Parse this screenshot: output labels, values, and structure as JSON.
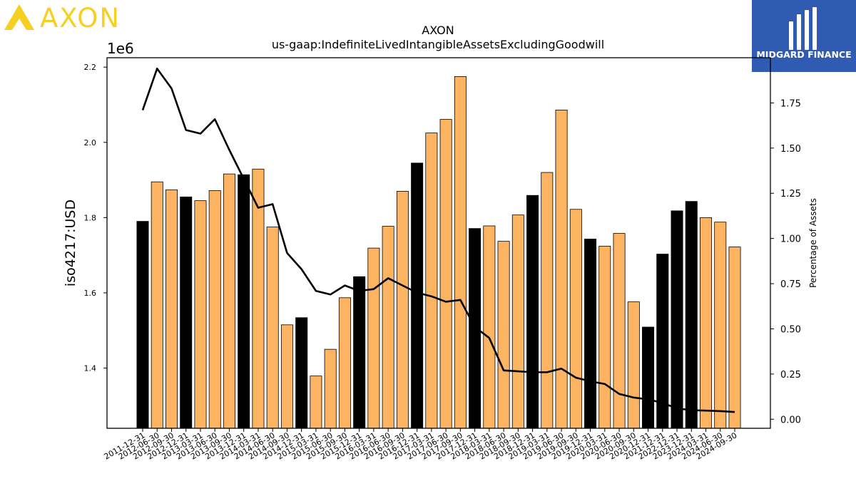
{
  "brand": {
    "company_logo_text": "AXON",
    "watermark_text": "MIDGARD FINANCE",
    "logo_color": "#f5d020",
    "watermark_bg": "#2f5bb3"
  },
  "chart_data": {
    "type": "bar",
    "title": "AXON",
    "subtitle": "us-gaap:IndefiniteLivedIntangibleAssetsExcludingGoodwill",
    "ylabel": "iso4217:USD",
    "y_offset_label": "1e6",
    "ylabel_right": "Percentage of Assets",
    "ylim": [
      1240000,
      2225000
    ],
    "y2lim": [
      -0.05,
      2.0
    ],
    "yticks": [
      1400000,
      1600000,
      1800000,
      2000000,
      2200000
    ],
    "yticks_labels": [
      "1.4",
      "1.6",
      "1.8",
      "2.0",
      "2.2"
    ],
    "y2ticks": [
      0.0,
      0.25,
      0.5,
      0.75,
      1.0,
      1.25,
      1.5,
      1.75
    ],
    "y2ticks_labels": [
      "0.00",
      "0.25",
      "0.50",
      "0.75",
      "1.00",
      "1.25",
      "1.50",
      "1.75"
    ],
    "grid": false,
    "categories": [
      "2011-12-31",
      "2012-06-30",
      "2012-09-30",
      "2012-12-31",
      "2013-03-31",
      "2013-06-30",
      "2013-09-30",
      "2013-12-31",
      "2014-03-31",
      "2014-06-30",
      "2014-09-30",
      "2014-12-31",
      "2015-03-31",
      "2015-06-30",
      "2015-09-30",
      "2015-12-31",
      "2016-03-31",
      "2016-06-30",
      "2016-09-30",
      "2016-12-31",
      "2017-03-31",
      "2017-06-30",
      "2017-09-30",
      "2017-12-31",
      "2018-03-31",
      "2018-06-30",
      "2018-09-30",
      "2018-12-31",
      "2019-03-31",
      "2019-06-30",
      "2019-09-30",
      "2019-12-31",
      "2020-03-31",
      "2020-06-30",
      "2020-09-30",
      "2020-12-31",
      "2021-12-31",
      "2022-12-31",
      "2023-12-31",
      "2024-03-31",
      "2024-06-30",
      "2024-09-30"
    ],
    "values": [
      1790000,
      1895000,
      1874000,
      1855000,
      1845000,
      1872000,
      1916000,
      1914000,
      1929000,
      1775000,
      1515000,
      1534000,
      1379000,
      1450000,
      1587000,
      1643000,
      1719000,
      1777000,
      1870000,
      1945000,
      2025000,
      2061000,
      2175000,
      1771000,
      1778000,
      1737000,
      1807000,
      1859000,
      1920000,
      2086000,
      1822000,
      1743000,
      1724000,
      1758000,
      1576000,
      1509000,
      1703000,
      1818000,
      1843000,
      1800000,
      1788000,
      1722000
    ],
    "bar_colors": [
      "#000000",
      "#fdb462",
      "#fdb462",
      "#000000",
      "#fdb462",
      "#fdb462",
      "#fdb462",
      "#000000",
      "#fdb462",
      "#fdb462",
      "#fdb462",
      "#000000",
      "#fdb462",
      "#fdb462",
      "#fdb462",
      "#000000",
      "#fdb462",
      "#fdb462",
      "#fdb462",
      "#000000",
      "#fdb462",
      "#fdb462",
      "#fdb462",
      "#000000",
      "#fdb462",
      "#fdb462",
      "#fdb462",
      "#000000",
      "#fdb462",
      "#fdb462",
      "#fdb462",
      "#000000",
      "#fdb462",
      "#fdb462",
      "#fdb462",
      "#000000",
      "#000000",
      "#000000",
      "#000000",
      "#fdb462",
      "#fdb462",
      "#fdb462"
    ],
    "line_series": {
      "axis": "right",
      "color": "#000000",
      "values": [
        1.71,
        1.94,
        1.83,
        1.6,
        1.58,
        1.66,
        1.49,
        1.33,
        1.17,
        1.19,
        0.92,
        0.83,
        0.71,
        0.69,
        0.74,
        0.71,
        0.72,
        0.78,
        0.74,
        0.7,
        0.68,
        0.65,
        0.66,
        0.51,
        0.45,
        0.27,
        0.265,
        0.26,
        0.26,
        0.28,
        0.23,
        0.21,
        0.195,
        0.14,
        0.12,
        0.11,
        0.09,
        0.06,
        0.05,
        0.048,
        0.045,
        0.04
      ]
    }
  }
}
